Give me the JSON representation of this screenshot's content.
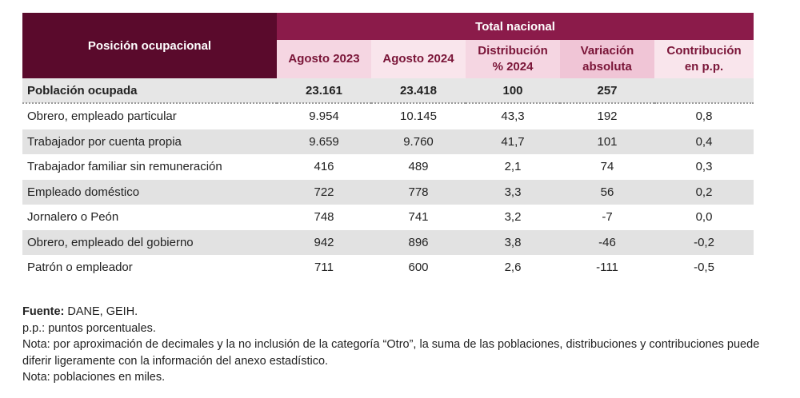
{
  "table": {
    "header": {
      "first_col": "Posición ocupacional",
      "group": "Total nacional",
      "cols": [
        "Agosto 2023",
        "Agosto 2024",
        "Distribución\n% 2024",
        "Variación\nabsoluta",
        "Contribución\nen p.p."
      ]
    },
    "total_row": {
      "label": "Población ocupada",
      "values": [
        "23.161",
        "23.418",
        "100",
        "257",
        ""
      ]
    },
    "rows": [
      {
        "label": "Obrero, empleado particular",
        "values": [
          "9.954",
          "10.145",
          "43,3",
          "192",
          "0,8"
        ]
      },
      {
        "label": "Trabajador por cuenta propia",
        "values": [
          "9.659",
          "9.760",
          "41,7",
          "101",
          "0,4"
        ]
      },
      {
        "label": "Trabajador familiar sin remuneración",
        "values": [
          "416",
          "489",
          "2,1",
          "74",
          "0,3"
        ]
      },
      {
        "label": "Empleado doméstico",
        "values": [
          "722",
          "778",
          "3,3",
          "56",
          "0,2"
        ]
      },
      {
        "label": "Jornalero o Peón",
        "values": [
          "748",
          "741",
          "3,2",
          "-7",
          "0,0"
        ]
      },
      {
        "label": "Obrero, empleado del gobierno",
        "values": [
          "942",
          "896",
          "3,8",
          "-46",
          "-0,2"
        ]
      },
      {
        "label": "Patrón o empleador",
        "values": [
          "711",
          "600",
          "2,6",
          "-111",
          "-0,5"
        ]
      }
    ]
  },
  "notes": {
    "source_label": "Fuente:",
    "source_text": " DANE, GEIH.",
    "pp": "p.p.: puntos porcentuales.",
    "nota1": "Nota: por aproximación de decimales y la no inclusión de la categoría “Otro”, la suma de las poblaciones, distribuciones y contribuciones puede diferir ligeramente con la información del anexo estadístico.",
    "nota2": "Nota: poblaciones en miles."
  }
}
